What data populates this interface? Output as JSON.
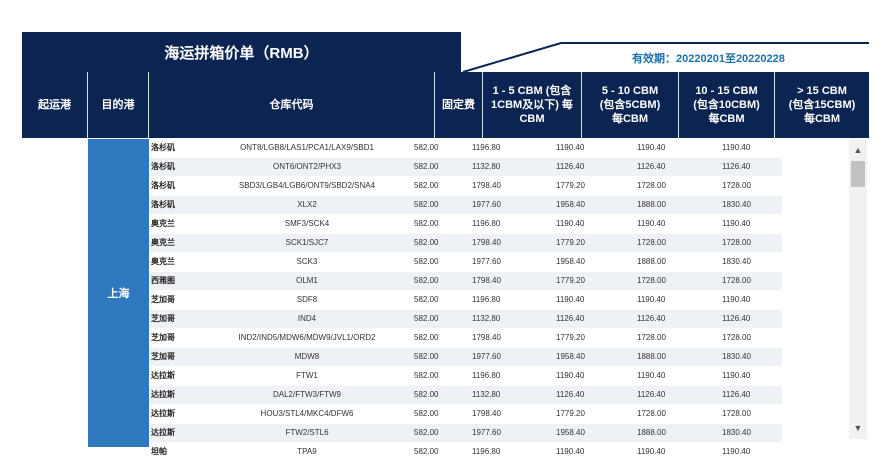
{
  "title": "海运拼箱价单（RMB）",
  "validity": "有效期：20220201至20220228",
  "headers": {
    "origin": "起运港",
    "destination": "目的港",
    "warehouse": "仓库代码",
    "fixed_fee": "固定费",
    "tier1": "1 - 5 CBM (包含\n1CBM及以下) 每\nCBM",
    "tier2": "5 - 10 CBM\n(包含5CBM)\n每CBM",
    "tier3": "10 - 15 CBM\n(包含10CBM)\n每CBM",
    "tier4": "> 15 CBM\n(包含15CBM)\n每CBM"
  },
  "origin_city": "上海",
  "rows": [
    {
      "dest": "洛杉矶",
      "wh": "ONT8/LGB8/LAS1/PCA1/LAX9/SBD1",
      "fixed": "582.00",
      "p1": "1196.80",
      "p2": "1190.40",
      "p3": "1190.40",
      "p4": "1190.40"
    },
    {
      "dest": "洛杉矶",
      "wh": "ONT6/ONT2/PHX3",
      "fixed": "582.00",
      "p1": "1132.80",
      "p2": "1126.40",
      "p3": "1126.40",
      "p4": "1126.40"
    },
    {
      "dest": "洛杉矶",
      "wh": "SBD3/LGB4/LGB6/ONT9/SBD2/SNA4",
      "fixed": "582.00",
      "p1": "1798.40",
      "p2": "1779.20",
      "p3": "1728.00",
      "p4": "1728.00"
    },
    {
      "dest": "洛杉矶",
      "wh": "XLX2",
      "fixed": "582.00",
      "p1": "1977.60",
      "p2": "1958.40",
      "p3": "1888.00",
      "p4": "1830.40"
    },
    {
      "dest": "奥克兰",
      "wh": "SMF3/SCK4",
      "fixed": "582.00",
      "p1": "1196.80",
      "p2": "1190.40",
      "p3": "1190.40",
      "p4": "1190.40"
    },
    {
      "dest": "奥克兰",
      "wh": "SCK1/SJC7",
      "fixed": "582.00",
      "p1": "1798.40",
      "p2": "1779.20",
      "p3": "1728.00",
      "p4": "1728.00"
    },
    {
      "dest": "奥克兰",
      "wh": "SCK3",
      "fixed": "582.00",
      "p1": "1977.60",
      "p2": "1958.40",
      "p3": "1888.00",
      "p4": "1830.40"
    },
    {
      "dest": "西雅图",
      "wh": "OLM1",
      "fixed": "582.00",
      "p1": "1798.40",
      "p2": "1779.20",
      "p3": "1728.00",
      "p4": "1728.00"
    },
    {
      "dest": "芝加哥",
      "wh": "SDF8",
      "fixed": "582.00",
      "p1": "1196.80",
      "p2": "1190.40",
      "p3": "1190.40",
      "p4": "1190.40"
    },
    {
      "dest": "芝加哥",
      "wh": "IND4",
      "fixed": "582.00",
      "p1": "1132.80",
      "p2": "1126.40",
      "p3": "1126.40",
      "p4": "1126.40"
    },
    {
      "dest": "芝加哥",
      "wh": "IND2/IND5/MDW6/MDW9/JVL1/ORD2",
      "fixed": "582.00",
      "p1": "1798.40",
      "p2": "1779.20",
      "p3": "1728.00",
      "p4": "1728.00"
    },
    {
      "dest": "芝加哥",
      "wh": "MDW8",
      "fixed": "582.00",
      "p1": "1977.60",
      "p2": "1958.40",
      "p3": "1888.00",
      "p4": "1830.40"
    },
    {
      "dest": "达拉斯",
      "wh": "FTW1",
      "fixed": "582.00",
      "p1": "1196.80",
      "p2": "1190.40",
      "p3": "1190.40",
      "p4": "1190.40"
    },
    {
      "dest": "达拉斯",
      "wh": "DAL2/FTW3/FTW9",
      "fixed": "582.00",
      "p1": "1132.80",
      "p2": "1126.40",
      "p3": "1126.40",
      "p4": "1126.40"
    },
    {
      "dest": "达拉斯",
      "wh": "HOU3/STL4/MKC4/DFW6",
      "fixed": "582.00",
      "p1": "1798.40",
      "p2": "1779.20",
      "p3": "1728.00",
      "p4": "1728.00"
    },
    {
      "dest": "达拉斯",
      "wh": "FTW2/STL6",
      "fixed": "582.00",
      "p1": "1977.60",
      "p2": "1958.40",
      "p3": "1888.00",
      "p4": "1830.40"
    },
    {
      "dest": "坦帕",
      "wh": "TPA9",
      "fixed": "582.00",
      "p1": "1196.80",
      "p2": "1190.40",
      "p3": "1190.40",
      "p4": "1190.40"
    }
  ]
}
